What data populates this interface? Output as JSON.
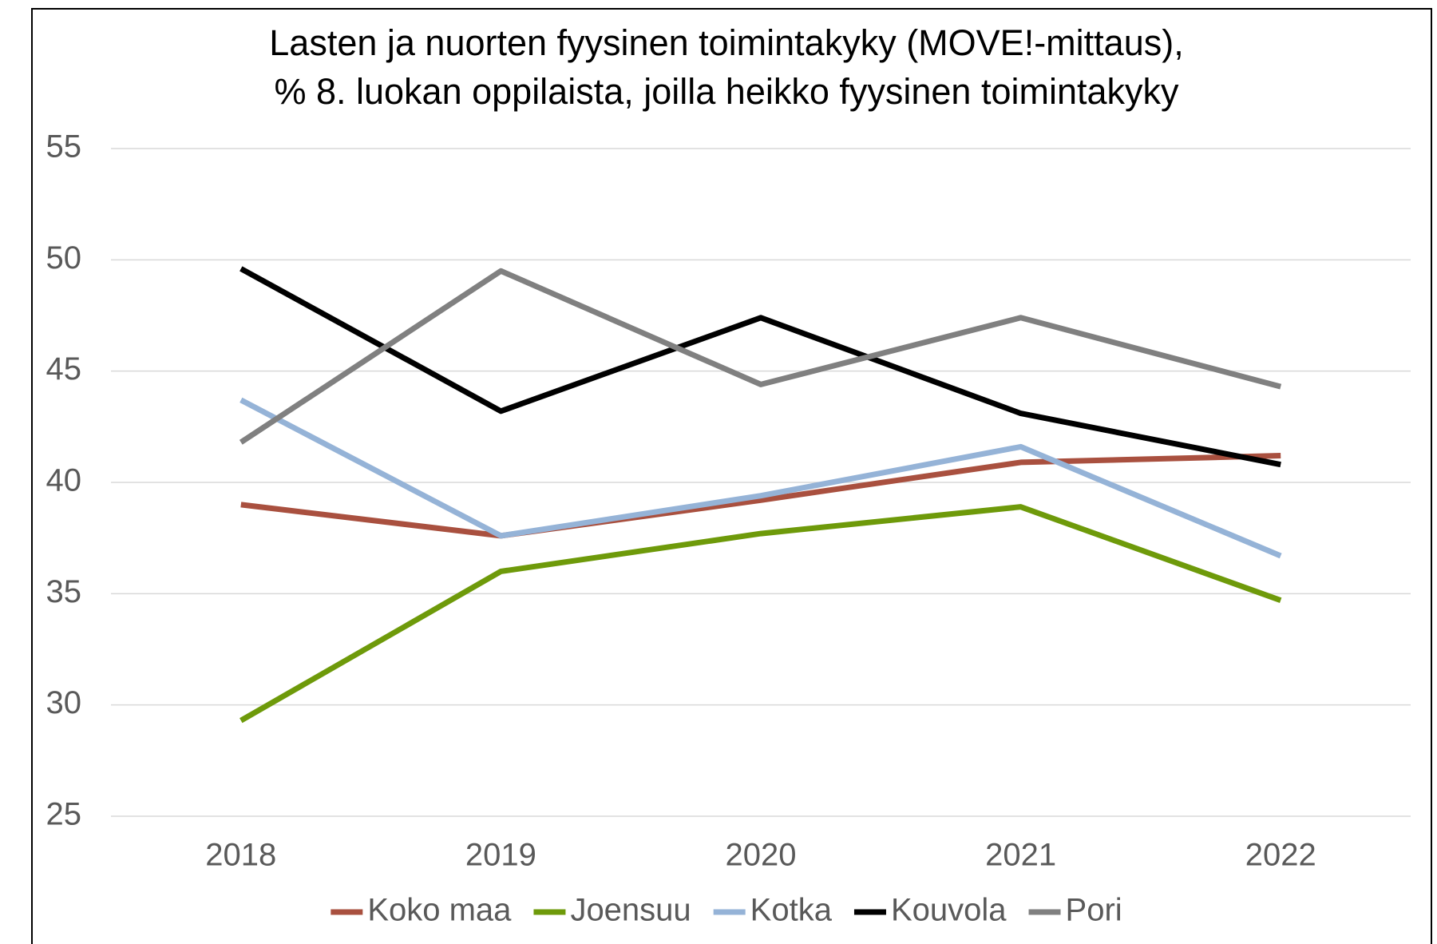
{
  "chart_data": {
    "type": "line",
    "title": [
      "Lasten ja nuorten fyysinen toimintakyky (MOVE!-mittaus),",
      "% 8. luokan oppilaista, joilla heikko fyysinen toimintakyky"
    ],
    "categories": [
      "2018",
      "2019",
      "2020",
      "2021",
      "2022"
    ],
    "series": [
      {
        "name": "Koko maa",
        "color": "#a9503f",
        "values": [
          39.0,
          37.6,
          39.2,
          40.9,
          41.2
        ]
      },
      {
        "name": "Joensuu",
        "color": "#6e9a0a",
        "values": [
          29.3,
          36.0,
          37.7,
          38.9,
          34.7
        ]
      },
      {
        "name": "Kotka",
        "color": "#95b3d7",
        "values": [
          43.7,
          37.6,
          39.4,
          41.6,
          36.7
        ]
      },
      {
        "name": "Kouvola",
        "color": "#000000",
        "values": [
          49.6,
          43.2,
          47.4,
          43.1,
          40.8
        ]
      },
      {
        "name": "Pori",
        "color": "#808080",
        "values": [
          41.8,
          49.5,
          44.4,
          47.4,
          44.3
        ]
      }
    ],
    "ylim": [
      25,
      55
    ],
    "yticks": [
      25,
      30,
      35,
      40,
      45,
      50,
      55
    ],
    "grid": true,
    "legend": "bottom"
  }
}
